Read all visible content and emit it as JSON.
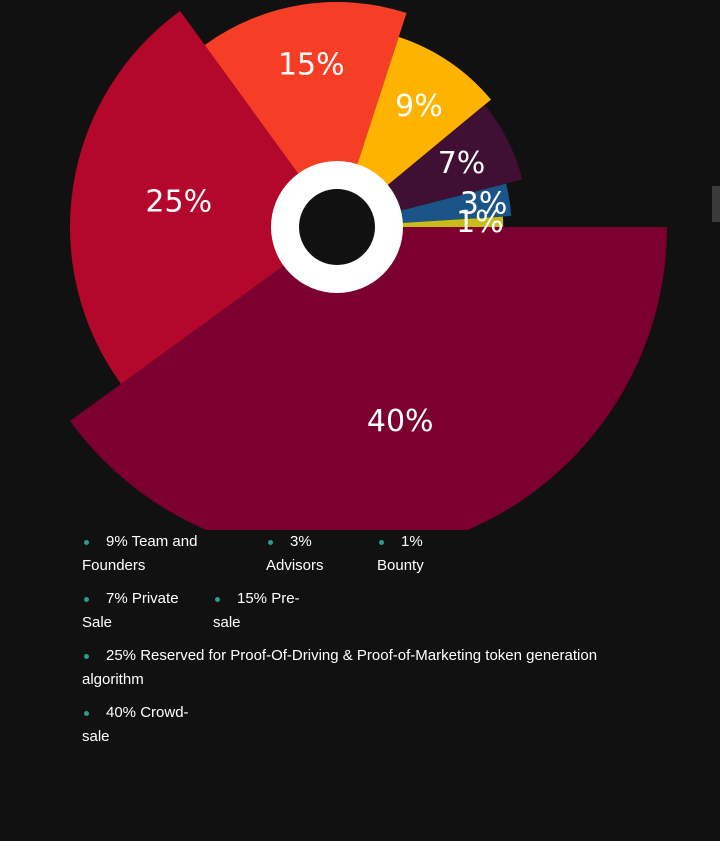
{
  "chart_data": {
    "type": "pie",
    "slices": [
      {
        "label": "40%",
        "value": 40,
        "color": "#7b0030"
      },
      {
        "label": "25%",
        "value": 25,
        "color": "#b3072b"
      },
      {
        "label": "15%",
        "value": 15,
        "color": "#f63e26"
      },
      {
        "label": "9%",
        "value": 9,
        "color": "#ffb301"
      },
      {
        "label": "7%",
        "value": 7,
        "color": "#3f0f34"
      },
      {
        "label": "3%",
        "value": 3,
        "color": "#1b5587"
      },
      {
        "label": "1%",
        "value": 1,
        "color": "#c7bc1b"
      }
    ]
  },
  "legend": {
    "team_founders": "9% Team and Founders",
    "advisors": "3% Advisors",
    "bounty": "1% Bounty",
    "private_sale": "7% Private Sale",
    "pre_sale": "15% Pre-sale",
    "reserved": "25% Reserved for Proof-Of-Driving & Proof-of-Marketing token generation algorithm",
    "crowd_sale": "40% Crowd-sale",
    "bullet_color": "#2a9d8f"
  },
  "colors": {
    "background": "#111111",
    "hole_ring": "#ffffff"
  }
}
